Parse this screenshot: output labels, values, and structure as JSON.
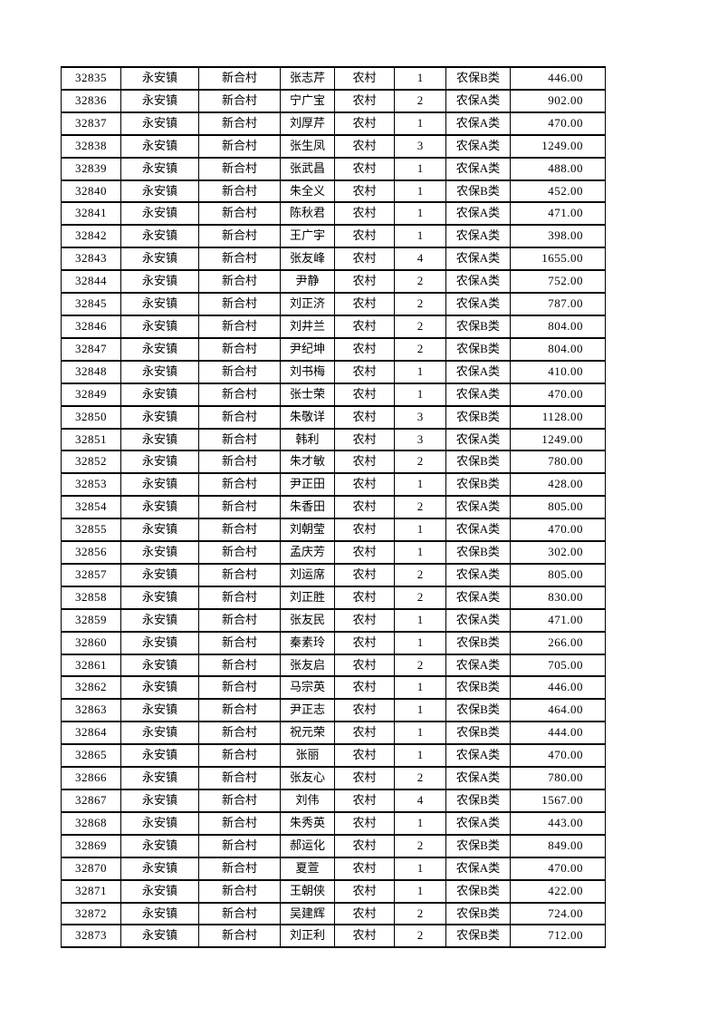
{
  "page": {
    "background_color": "#ffffff",
    "text_color": "#000000",
    "table_border_color": "#000000"
  },
  "table": {
    "columns": [
      {
        "key": "record-id"
      },
      {
        "key": "town"
      },
      {
        "key": "village"
      },
      {
        "key": "person-name"
      },
      {
        "key": "household-type"
      },
      {
        "key": "person-count"
      },
      {
        "key": "insurance-class"
      },
      {
        "key": "amount"
      }
    ],
    "rows": [
      [
        "32835",
        "永安镇",
        "新合村",
        "张志芹",
        "农村",
        "1",
        "农保B类",
        "446.00"
      ],
      [
        "32836",
        "永安镇",
        "新合村",
        "宁广宝",
        "农村",
        "2",
        "农保A类",
        "902.00"
      ],
      [
        "32837",
        "永安镇",
        "新合村",
        "刘厚芹",
        "农村",
        "1",
        "农保A类",
        "470.00"
      ],
      [
        "32838",
        "永安镇",
        "新合村",
        "张生凤",
        "农村",
        "3",
        "农保A类",
        "1249.00"
      ],
      [
        "32839",
        "永安镇",
        "新合村",
        "张武昌",
        "农村",
        "1",
        "农保A类",
        "488.00"
      ],
      [
        "32840",
        "永安镇",
        "新合村",
        "朱全义",
        "农村",
        "1",
        "农保B类",
        "452.00"
      ],
      [
        "32841",
        "永安镇",
        "新合村",
        "陈秋君",
        "农村",
        "1",
        "农保A类",
        "471.00"
      ],
      [
        "32842",
        "永安镇",
        "新合村",
        "王广宇",
        "农村",
        "1",
        "农保A类",
        "398.00"
      ],
      [
        "32843",
        "永安镇",
        "新合村",
        "张友峰",
        "农村",
        "4",
        "农保A类",
        "1655.00"
      ],
      [
        "32844",
        "永安镇",
        "新合村",
        "尹静",
        "农村",
        "2",
        "农保A类",
        "752.00"
      ],
      [
        "32845",
        "永安镇",
        "新合村",
        "刘正济",
        "农村",
        "2",
        "农保A类",
        "787.00"
      ],
      [
        "32846",
        "永安镇",
        "新合村",
        "刘井兰",
        "农村",
        "2",
        "农保B类",
        "804.00"
      ],
      [
        "32847",
        "永安镇",
        "新合村",
        "尹纪坤",
        "农村",
        "2",
        "农保B类",
        "804.00"
      ],
      [
        "32848",
        "永安镇",
        "新合村",
        "刘书梅",
        "农村",
        "1",
        "农保A类",
        "410.00"
      ],
      [
        "32849",
        "永安镇",
        "新合村",
        "张士荣",
        "农村",
        "1",
        "农保A类",
        "470.00"
      ],
      [
        "32850",
        "永安镇",
        "新合村",
        "朱敬详",
        "农村",
        "3",
        "农保B类",
        "1128.00"
      ],
      [
        "32851",
        "永安镇",
        "新合村",
        "韩利",
        "农村",
        "3",
        "农保A类",
        "1249.00"
      ],
      [
        "32852",
        "永安镇",
        "新合村",
        "朱才敏",
        "农村",
        "2",
        "农保B类",
        "780.00"
      ],
      [
        "32853",
        "永安镇",
        "新合村",
        "尹正田",
        "农村",
        "1",
        "农保B类",
        "428.00"
      ],
      [
        "32854",
        "永安镇",
        "新合村",
        "朱香田",
        "农村",
        "2",
        "农保A类",
        "805.00"
      ],
      [
        "32855",
        "永安镇",
        "新合村",
        "刘朝莹",
        "农村",
        "1",
        "农保A类",
        "470.00"
      ],
      [
        "32856",
        "永安镇",
        "新合村",
        "孟庆芳",
        "农村",
        "1",
        "农保B类",
        "302.00"
      ],
      [
        "32857",
        "永安镇",
        "新合村",
        "刘运席",
        "农村",
        "2",
        "农保A类",
        "805.00"
      ],
      [
        "32858",
        "永安镇",
        "新合村",
        "刘正胜",
        "农村",
        "2",
        "农保A类",
        "830.00"
      ],
      [
        "32859",
        "永安镇",
        "新合村",
        "张友民",
        "农村",
        "1",
        "农保A类",
        "471.00"
      ],
      [
        "32860",
        "永安镇",
        "新合村",
        "秦素玲",
        "农村",
        "1",
        "农保B类",
        "266.00"
      ],
      [
        "32861",
        "永安镇",
        "新合村",
        "张友启",
        "农村",
        "2",
        "农保A类",
        "705.00"
      ],
      [
        "32862",
        "永安镇",
        "新合村",
        "马宗英",
        "农村",
        "1",
        "农保B类",
        "446.00"
      ],
      [
        "32863",
        "永安镇",
        "新合村",
        "尹正志",
        "农村",
        "1",
        "农保B类",
        "464.00"
      ],
      [
        "32864",
        "永安镇",
        "新合村",
        "祝元荣",
        "农村",
        "1",
        "农保B类",
        "444.00"
      ],
      [
        "32865",
        "永安镇",
        "新合村",
        "张丽",
        "农村",
        "1",
        "农保A类",
        "470.00"
      ],
      [
        "32866",
        "永安镇",
        "新合村",
        "张友心",
        "农村",
        "2",
        "农保A类",
        "780.00"
      ],
      [
        "32867",
        "永安镇",
        "新合村",
        "刘伟",
        "农村",
        "4",
        "农保B类",
        "1567.00"
      ],
      [
        "32868",
        "永安镇",
        "新合村",
        "朱秀英",
        "农村",
        "1",
        "农保A类",
        "443.00"
      ],
      [
        "32869",
        "永安镇",
        "新合村",
        "郝运化",
        "农村",
        "2",
        "农保B类",
        "849.00"
      ],
      [
        "32870",
        "永安镇",
        "新合村",
        "夏萱",
        "农村",
        "1",
        "农保A类",
        "470.00"
      ],
      [
        "32871",
        "永安镇",
        "新合村",
        "王朝侠",
        "农村",
        "1",
        "农保B类",
        "422.00"
      ],
      [
        "32872",
        "永安镇",
        "新合村",
        "吴建辉",
        "农村",
        "2",
        "农保B类",
        "724.00"
      ],
      [
        "32873",
        "永安镇",
        "新合村",
        "刘正利",
        "农村",
        "2",
        "农保B类",
        "712.00"
      ]
    ]
  }
}
